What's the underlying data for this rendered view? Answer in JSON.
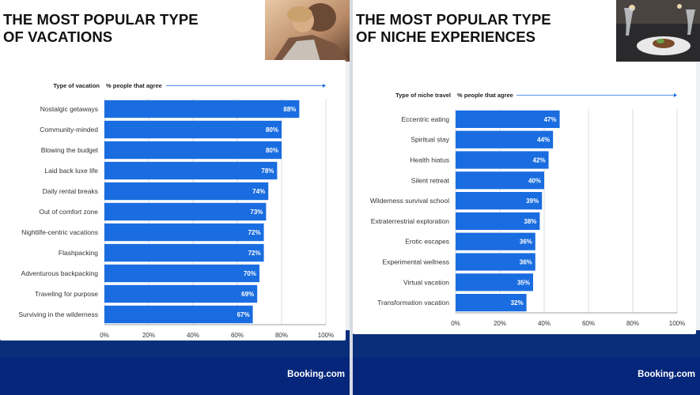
{
  "brand": "Booking.com",
  "panels": [
    {
      "title_line1": "THE MOST POPULAR TYPE",
      "title_line2": "OF VACATIONS"
    },
    {
      "title_line1": "THE MOST POPULAR TYPE",
      "title_line2": "OF NICHE EXPERIENCES"
    }
  ],
  "colors": {
    "bar": "#1a6de0",
    "navy": "#05267a",
    "grid": "#d9dde3",
    "axis": "#1a6de0"
  },
  "chart_data": [
    {
      "type": "bar",
      "orientation": "horizontal",
      "category_header": "Type of vacation",
      "value_header": "% people that agree",
      "categories": [
        "Nostalgic getaways",
        "Community-minded",
        "Blowing the budget",
        "Laid back luxe life",
        "Daily rental breaks",
        "Out of comfort zone",
        "Nightlife-centric vacations",
        "Flashpacking",
        "Adventurous backpacking",
        "Traveling for purpose",
        "Surviving in the wilderness"
      ],
      "values": [
        88,
        80,
        80,
        78,
        74,
        73,
        72,
        72,
        70,
        69,
        67
      ],
      "value_labels": [
        "88%",
        "80%",
        "80%",
        "78%",
        "74%",
        "73%",
        "72%",
        "72%",
        "70%",
        "69%",
        "67%"
      ],
      "xlim": [
        0,
        100
      ],
      "ticks": [
        "0%",
        "20%",
        "40%",
        "60%",
        "80%",
        "100%"
      ],
      "grid": true
    },
    {
      "type": "bar",
      "orientation": "horizontal",
      "category_header": "Type of niche travel",
      "value_header": "% people that agree",
      "categories": [
        "Eccentric eating",
        "Spiritual stay",
        "Health hiatus",
        "Silent retreat",
        "Wilderness survival school",
        "Extraterrestrial exploration",
        "Erotic escapes",
        "Experimental wellness",
        "Virtual vacation",
        "Transformation vacation"
      ],
      "values": [
        47,
        44,
        42,
        40,
        39,
        38,
        36,
        36,
        35,
        32
      ],
      "value_labels": [
        "47%",
        "44%",
        "42%",
        "40%",
        "39%",
        "38%",
        "36%",
        "36%",
        "35%",
        "32%"
      ],
      "xlim": [
        0,
        100
      ],
      "ticks": [
        "0%",
        "20%",
        "40%",
        "60%",
        "80%",
        "100%"
      ],
      "grid": true
    }
  ]
}
